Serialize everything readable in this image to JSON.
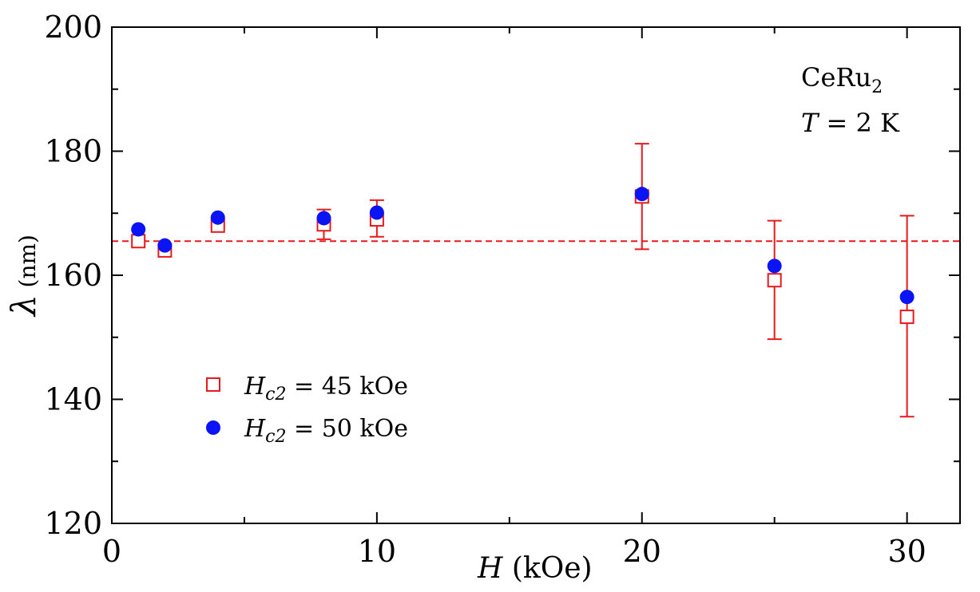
{
  "chart_data": {
    "type": "scatter",
    "xlabel": {
      "var": "H",
      "unit": " (kOe)"
    },
    "ylabel": {
      "var": "λ",
      "unit": " (nm)"
    },
    "xlim": [
      0,
      32
    ],
    "ylim": [
      120,
      200
    ],
    "xticks": [
      0,
      10,
      20,
      30
    ],
    "yticks": [
      120,
      140,
      160,
      180,
      200
    ],
    "x_minor_step": 5,
    "y_minor_step": 10,
    "ticks_direction": "in",
    "grid": false,
    "annotation": {
      "material": {
        "base": "CeRu",
        "sub": "2"
      },
      "temperature": {
        "var": "T",
        "rest": " = 2 K"
      }
    },
    "reference_line": {
      "y": 165.5,
      "style": "dashed",
      "color": "#e8191c"
    },
    "legend": {
      "placement": "lower-left"
    },
    "series": [
      {
        "label": {
          "var": "H",
          "sub": "c2",
          "rest": " = 45 kOe"
        },
        "marker": "open-square",
        "color": "#e8191c",
        "points": [
          {
            "x": 1,
            "y": 165.5,
            "yerr_low": 165.5,
            "yerr_high": 165.5
          },
          {
            "x": 2,
            "y": 164.0,
            "yerr_low": 164.0,
            "yerr_high": 164.0
          },
          {
            "x": 4,
            "y": 168.0,
            "yerr_low": 168.0,
            "yerr_high": 168.0
          },
          {
            "x": 8,
            "y": 168.2,
            "yerr_low": 165.8,
            "yerr_high": 170.6
          },
          {
            "x": 10,
            "y": 169.0,
            "yerr_low": 166.2,
            "yerr_high": 172.1
          },
          {
            "x": 20,
            "y": 172.7,
            "yerr_low": 164.2,
            "yerr_high": 181.2
          },
          {
            "x": 25,
            "y": 159.2,
            "yerr_low": 149.7,
            "yerr_high": 168.8
          },
          {
            "x": 30,
            "y": 153.3,
            "yerr_low": 137.2,
            "yerr_high": 169.6
          }
        ]
      },
      {
        "label": {
          "var": "H",
          "sub": "c2",
          "rest": " = 50 kOe"
        },
        "marker": "filled-circle",
        "color": "#0a14f5",
        "points": [
          {
            "x": 1,
            "y": 167.4
          },
          {
            "x": 2,
            "y": 164.8
          },
          {
            "x": 4,
            "y": 169.3
          },
          {
            "x": 8,
            "y": 169.2
          },
          {
            "x": 10,
            "y": 170.1
          },
          {
            "x": 20,
            "y": 173.1
          },
          {
            "x": 25,
            "y": 161.5
          },
          {
            "x": 30,
            "y": 156.5
          }
        ]
      }
    ]
  }
}
